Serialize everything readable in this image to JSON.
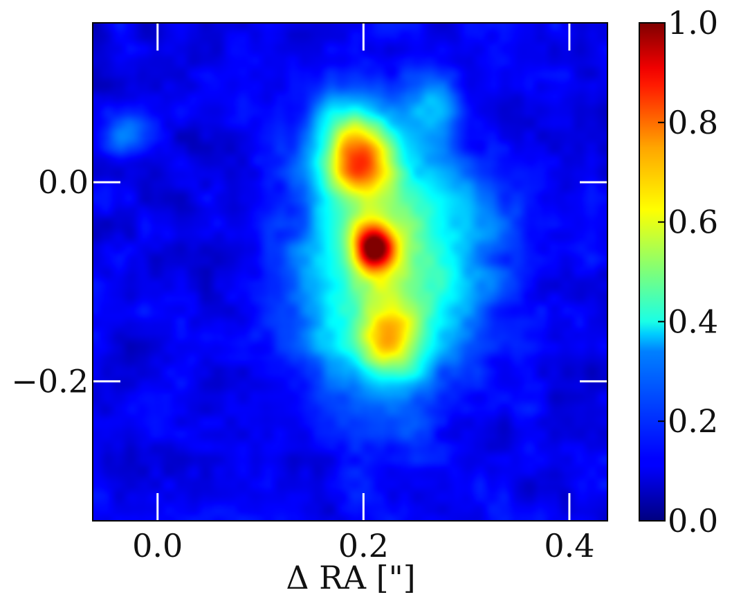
{
  "chart_data": {
    "type": "heatmap",
    "title": "",
    "xlabel": "Δ RA [\"]",
    "ylabel": "",
    "xlim": [
      -0.063,
      0.437
    ],
    "ylim": [
      -0.34,
      0.16
    ],
    "x_ticks": [
      {
        "value": 0.0,
        "label": "0.0"
      },
      {
        "value": 0.2,
        "label": "0.2"
      },
      {
        "value": 0.4,
        "label": "0.4"
      }
    ],
    "y_ticks": [
      {
        "value": 0.0,
        "label": "0.0"
      },
      {
        "value": -0.2,
        "label": "−0.2"
      }
    ],
    "colorbar": {
      "colormap": "jet",
      "range": [
        0.0,
        1.0
      ],
      "ticks": [
        {
          "value": 0.0,
          "label": "0.0"
        },
        {
          "value": 0.2,
          "label": "0.2"
        },
        {
          "value": 0.4,
          "label": "0.4"
        },
        {
          "value": 0.6,
          "label": "0.6"
        },
        {
          "value": 0.8,
          "label": "0.8"
        },
        {
          "value": 1.0,
          "label": "1.0"
        }
      ]
    },
    "grid": false,
    "tick_color": "#ffffff",
    "background_level": 0.05,
    "components": [
      {
        "x": 0.22,
        "y": -0.09,
        "sx": 0.055,
        "sy": 0.09,
        "amp": 0.42
      },
      {
        "x": 0.195,
        "y": 0.02,
        "sx": 0.025,
        "sy": 0.028,
        "amp": 0.45
      },
      {
        "x": 0.21,
        "y": -0.065,
        "sx": 0.014,
        "sy": 0.016,
        "amp": 0.6
      },
      {
        "x": 0.225,
        "y": -0.16,
        "sx": 0.02,
        "sy": 0.025,
        "amp": 0.3
      },
      {
        "x": 0.185,
        "y": 0.055,
        "sx": 0.025,
        "sy": 0.025,
        "amp": 0.2
      },
      {
        "x": 0.27,
        "y": 0.075,
        "sx": 0.018,
        "sy": 0.02,
        "amp": 0.15
      },
      {
        "x": -0.03,
        "y": 0.05,
        "sx": 0.02,
        "sy": 0.02,
        "amp": 0.12
      },
      {
        "x": 0.3,
        "y": -0.05,
        "sx": 0.04,
        "sy": 0.05,
        "amp": 0.08
      }
    ]
  }
}
